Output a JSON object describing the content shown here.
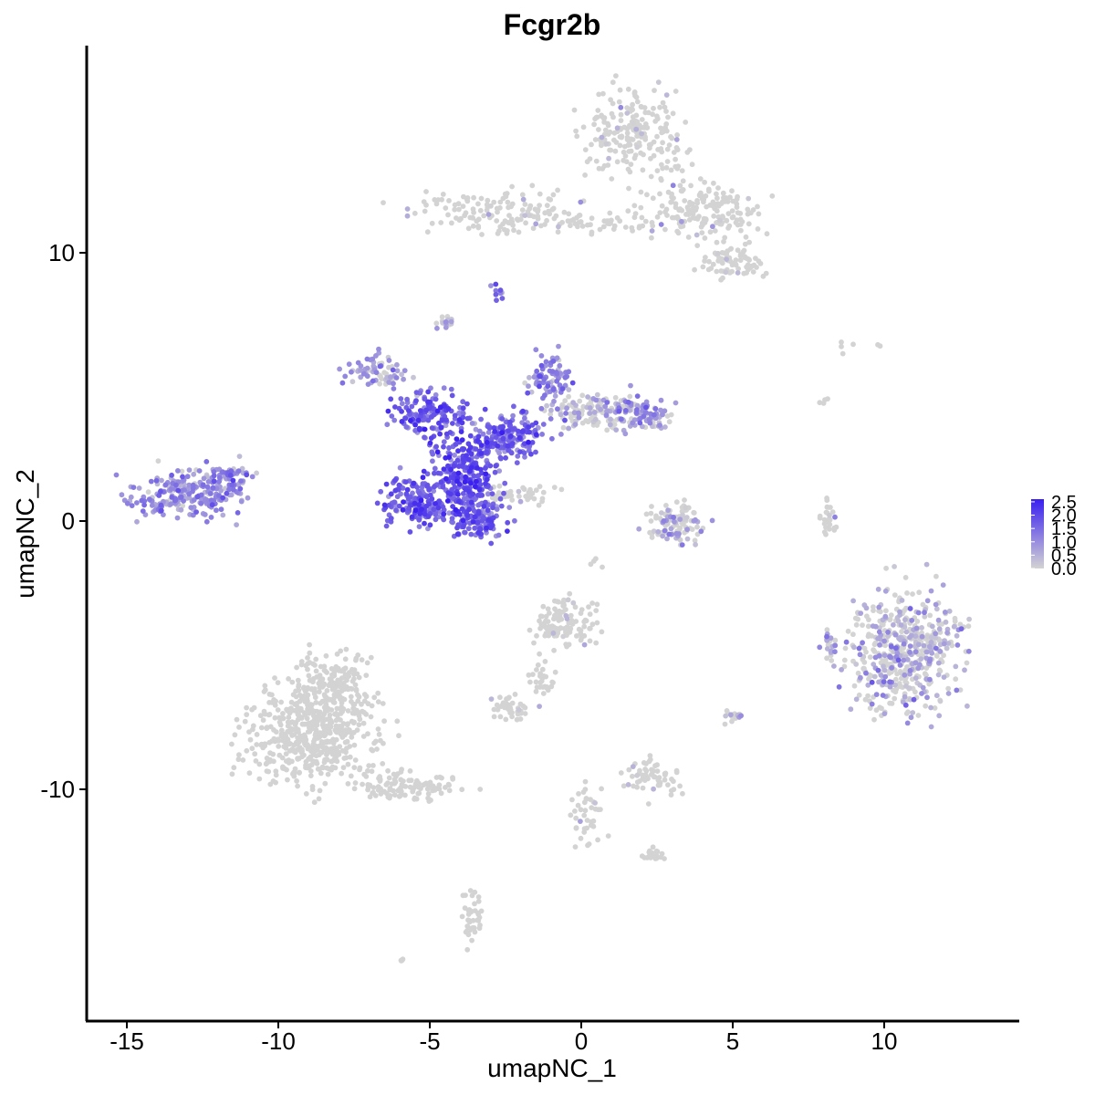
{
  "chart_data": {
    "type": "scatter",
    "title": "Fcgr2b",
    "xlabel": "umapNC_1",
    "ylabel": "umapNC_2",
    "xlim": [
      -16.5,
      14.5
    ],
    "ylim": [
      -18.5,
      17.5
    ],
    "x_ticks": [
      -15,
      -10,
      -5,
      0,
      5,
      10
    ],
    "x_tick_labels": [
      "-15",
      "-10",
      "-5",
      "0",
      "5",
      "10"
    ],
    "y_ticks": [
      10,
      0,
      -10
    ],
    "y_tick_labels": [
      "10",
      "0",
      "-10"
    ],
    "grid": false,
    "color_scale": {
      "low_color": "#d3d3d3",
      "high_color": "#3a1ff0",
      "min": 0,
      "max": 2.6,
      "ticks": [
        2.5,
        2.0,
        1.5,
        1.0,
        0.5,
        0.0
      ],
      "tick_labels": [
        "2.5",
        "2.0",
        "1.5",
        "1.0",
        "0.5",
        "0.0"
      ]
    },
    "legend_position": "right",
    "clusters": [
      {
        "cx": -2.8,
        "cy": 11.5,
        "rx": 2.6,
        "ry": 0.7,
        "n": 140,
        "expr_mean": 0.05
      },
      {
        "cx": 1.8,
        "cy": 14.5,
        "rx": 1.5,
        "ry": 1.4,
        "n": 220,
        "expr_mean": 0.05
      },
      {
        "cx": 4.0,
        "cy": 11.5,
        "rx": 1.7,
        "ry": 1.0,
        "n": 180,
        "expr_mean": 0.06
      },
      {
        "cx": 5.0,
        "cy": 9.6,
        "rx": 1.0,
        "ry": 0.6,
        "n": 70,
        "expr_mean": 0.03
      },
      {
        "cx": 0.6,
        "cy": 11.1,
        "rx": 1.5,
        "ry": 0.3,
        "n": 40,
        "expr_mean": 0.03
      },
      {
        "cx": -2.8,
        "cy": 8.6,
        "rx": 0.3,
        "ry": 0.3,
        "n": 10,
        "expr_mean": 1.2
      },
      {
        "cx": -4.5,
        "cy": 7.4,
        "rx": 0.3,
        "ry": 0.3,
        "n": 15,
        "expr_mean": 0.6
      },
      {
        "cx": -6.8,
        "cy": 5.6,
        "rx": 0.8,
        "ry": 0.6,
        "n": 70,
        "expr_mean": 0.9
      },
      {
        "cx": -5.0,
        "cy": 4.0,
        "rx": 1.2,
        "ry": 0.7,
        "n": 150,
        "expr_mean": 1.6
      },
      {
        "cx": -3.8,
        "cy": 1.8,
        "rx": 1.0,
        "ry": 1.4,
        "n": 260,
        "expr_mean": 1.8
      },
      {
        "cx": -5.3,
        "cy": 0.7,
        "rx": 1.1,
        "ry": 0.8,
        "n": 190,
        "expr_mean": 1.6
      },
      {
        "cx": -3.4,
        "cy": 0.0,
        "rx": 0.8,
        "ry": 0.6,
        "n": 120,
        "expr_mean": 1.6
      },
      {
        "cx": -2.4,
        "cy": 3.2,
        "rx": 1.2,
        "ry": 0.8,
        "n": 170,
        "expr_mean": 1.5
      },
      {
        "cx": -1.0,
        "cy": 5.3,
        "rx": 0.6,
        "ry": 0.8,
        "n": 80,
        "expr_mean": 1.0
      },
      {
        "cx": 0.3,
        "cy": 4.1,
        "rx": 1.3,
        "ry": 0.6,
        "n": 130,
        "expr_mean": 0.6
      },
      {
        "cx": 2.0,
        "cy": 4.0,
        "rx": 0.9,
        "ry": 0.6,
        "n": 90,
        "expr_mean": 0.9
      },
      {
        "cx": -2.0,
        "cy": 1.0,
        "rx": 1.2,
        "ry": 0.3,
        "n": 40,
        "expr_mean": 0.15
      },
      {
        "cx": -13.2,
        "cy": 1.0,
        "rx": 1.5,
        "ry": 0.8,
        "n": 210,
        "expr_mean": 1.0
      },
      {
        "cx": -11.6,
        "cy": 1.5,
        "rx": 0.7,
        "ry": 0.7,
        "n": 70,
        "expr_mean": 1.1
      },
      {
        "cx": 3.2,
        "cy": -0.1,
        "rx": 0.9,
        "ry": 0.7,
        "n": 110,
        "expr_mean": 0.45
      },
      {
        "cx": 8.1,
        "cy": 0.2,
        "rx": 0.3,
        "ry": 0.7,
        "n": 25,
        "expr_mean": 0.2
      },
      {
        "cx": 10.7,
        "cy": -4.8,
        "rx": 1.7,
        "ry": 2.1,
        "n": 520,
        "expr_mean": 0.55
      },
      {
        "cx": 8.2,
        "cy": -4.5,
        "rx": 0.3,
        "ry": 0.6,
        "n": 20,
        "expr_mean": 0.6
      },
      {
        "cx": -0.5,
        "cy": -3.8,
        "rx": 0.9,
        "ry": 0.9,
        "n": 120,
        "expr_mean": 0.08
      },
      {
        "cx": -1.3,
        "cy": -6.0,
        "rx": 0.5,
        "ry": 0.7,
        "n": 30,
        "expr_mean": 0.03
      },
      {
        "cx": -2.5,
        "cy": -7.0,
        "rx": 0.6,
        "ry": 0.4,
        "n": 40,
        "expr_mean": 0.08
      },
      {
        "cx": 0.2,
        "cy": -11.0,
        "rx": 0.5,
        "ry": 1.2,
        "n": 40,
        "expr_mean": 0.02
      },
      {
        "cx": 2.3,
        "cy": -9.5,
        "rx": 0.8,
        "ry": 0.6,
        "n": 60,
        "expr_mean": 0.1
      },
      {
        "cx": 2.3,
        "cy": -12.4,
        "rx": 0.4,
        "ry": 0.3,
        "n": 20,
        "expr_mean": 0.02
      },
      {
        "cx": 5.0,
        "cy": -7.3,
        "rx": 0.3,
        "ry": 0.3,
        "n": 15,
        "expr_mean": 0.3
      },
      {
        "cx": -8.9,
        "cy": -7.9,
        "rx": 1.9,
        "ry": 1.7,
        "n": 520,
        "expr_mean": 0.0
      },
      {
        "cx": -8.2,
        "cy": -6.0,
        "rx": 1.1,
        "ry": 1.0,
        "n": 160,
        "expr_mean": 0.0
      },
      {
        "cx": -5.7,
        "cy": -9.9,
        "rx": 1.6,
        "ry": 0.5,
        "n": 110,
        "expr_mean": 0.0
      },
      {
        "cx": -3.6,
        "cy": -14.8,
        "rx": 0.3,
        "ry": 0.9,
        "n": 40,
        "expr_mean": 0.0
      },
      {
        "cx": -5.9,
        "cy": -16.4,
        "rx": 0.15,
        "ry": 0.15,
        "n": 4,
        "expr_mean": 0.0
      },
      {
        "cx": 8.9,
        "cy": 6.6,
        "rx": 1.2,
        "ry": 0.3,
        "n": 6,
        "expr_mean": 0.0
      },
      {
        "cx": 8.0,
        "cy": 4.7,
        "rx": 0.2,
        "ry": 0.4,
        "n": 4,
        "expr_mean": 0.0
      },
      {
        "cx": 0.5,
        "cy": -1.6,
        "rx": 0.2,
        "ry": 0.2,
        "n": 4,
        "expr_mean": 0.0
      }
    ]
  }
}
